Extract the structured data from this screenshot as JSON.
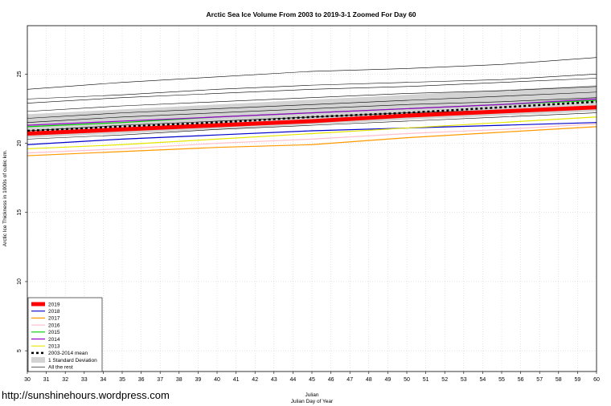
{
  "chart_data": {
    "type": "line",
    "title": "Arctic Sea Ice Volume From 2003 to 2019-3-1 Zoomed For Day 60",
    "xlabel": "Julian",
    "xlabel2": "Julian Day of Year",
    "ylabel": "Arctic Ice Thickness in 1000s of cubic km.",
    "xlim": [
      30,
      60
    ],
    "ylim": [
      3.5,
      28.5
    ],
    "x_ticks": [
      30,
      31,
      32,
      33,
      34,
      35,
      36,
      37,
      38,
      39,
      40,
      41,
      42,
      43,
      44,
      45,
      46,
      47,
      48,
      49,
      50,
      51,
      52,
      53,
      54,
      55,
      56,
      57,
      58,
      59,
      60
    ],
    "y_ticks": [
      5,
      10,
      15,
      20,
      25
    ],
    "grid": true,
    "legend_position": "bottom-left",
    "std_band": {
      "name": "1 Standard Deviation",
      "color": "#d3d3d3",
      "x": [
        30,
        40,
        50,
        60
      ],
      "lower": [
        20.4,
        21.0,
        21.7,
        22.3
      ],
      "upper": [
        22.1,
        22.8,
        23.5,
        24.2
      ]
    },
    "series": [
      {
        "name": "2019",
        "color": "#ff0000",
        "width": 5,
        "dash": "",
        "x": [
          30,
          35,
          40,
          45,
          50,
          55,
          60
        ],
        "values": [
          20.7,
          21.0,
          21.3,
          21.6,
          22.0,
          22.3,
          22.6
        ]
      },
      {
        "name": "2018",
        "color": "#0000cc",
        "width": 1.2,
        "dash": "",
        "x": [
          30,
          35,
          40,
          45,
          50,
          55,
          60
        ],
        "values": [
          19.9,
          20.3,
          20.6,
          20.9,
          21.1,
          21.3,
          21.5
        ]
      },
      {
        "name": "2017",
        "color": "#ff9900",
        "width": 1.2,
        "dash": "",
        "x": [
          30,
          35,
          40,
          45,
          50,
          55,
          60
        ],
        "values": [
          19.1,
          19.4,
          19.7,
          19.9,
          20.4,
          20.8,
          21.2
        ]
      },
      {
        "name": "2016",
        "color": "#ffc0cb",
        "width": 1.2,
        "dash": "",
        "x": [
          30,
          35,
          40,
          45,
          50,
          55,
          60
        ],
        "values": [
          19.3,
          19.6,
          20.0,
          20.3,
          20.7,
          21.0,
          21.4
        ]
      },
      {
        "name": "2015",
        "color": "#00cc00",
        "width": 1.2,
        "dash": "",
        "x": [
          30,
          35,
          40,
          45,
          50,
          55,
          60
        ],
        "values": [
          21.2,
          21.5,
          21.9,
          22.2,
          22.5,
          22.8,
          23.1
        ]
      },
      {
        "name": "2014",
        "color": "#9900cc",
        "width": 1.2,
        "dash": "",
        "x": [
          30,
          35,
          40,
          45,
          50,
          55,
          60
        ],
        "values": [
          21.3,
          21.6,
          21.9,
          22.2,
          22.5,
          22.8,
          23.2
        ]
      },
      {
        "name": "2013",
        "color": "#e6e600",
        "width": 1.2,
        "dash": "",
        "x": [
          30,
          35,
          40,
          45,
          50,
          55,
          60
        ],
        "values": [
          19.6,
          19.9,
          20.3,
          20.7,
          21.1,
          21.5,
          21.9
        ]
      },
      {
        "name": "2003-2014 mean",
        "color": "#000000",
        "width": 2.5,
        "dash": "3,3",
        "x": [
          30,
          35,
          40,
          45,
          50,
          55,
          60
        ],
        "values": [
          20.9,
          21.2,
          21.5,
          21.9,
          22.2,
          22.6,
          23.0
        ]
      },
      {
        "name": "All the rest",
        "color": "#000000",
        "width": 0.6,
        "dash": "",
        "x": [
          30,
          35,
          40,
          45,
          50,
          55,
          60
        ],
        "values": [
          23.9,
          24.4,
          24.8,
          25.2,
          25.4,
          25.7,
          26.2
        ]
      },
      {
        "name": "",
        "color": "#000000",
        "width": 0.6,
        "dash": "",
        "x": [
          30,
          35,
          40,
          45,
          50,
          55,
          60
        ],
        "values": [
          23.2,
          23.5,
          23.9,
          24.2,
          24.4,
          24.6,
          25.0
        ]
      },
      {
        "name": "",
        "color": "#000000",
        "width": 0.6,
        "dash": "",
        "x": [
          30,
          35,
          40,
          45,
          50,
          55,
          60
        ],
        "values": [
          22.9,
          23.3,
          23.6,
          23.9,
          24.1,
          24.4,
          24.7
        ]
      },
      {
        "name": "",
        "color": "#000000",
        "width": 0.6,
        "dash": "",
        "x": [
          30,
          35,
          40,
          45,
          50,
          55,
          60
        ],
        "values": [
          22.3,
          22.7,
          23.0,
          23.3,
          23.6,
          23.8,
          24.1
        ]
      },
      {
        "name": "",
        "color": "#000000",
        "width": 0.6,
        "dash": "",
        "x": [
          30,
          35,
          40,
          45,
          50,
          55,
          60
        ],
        "values": [
          21.8,
          22.2,
          22.5,
          22.8,
          23.1,
          23.4,
          23.7
        ]
      },
      {
        "name": "",
        "color": "#000000",
        "width": 0.6,
        "dash": "",
        "x": [
          30,
          35,
          40,
          45,
          50,
          55,
          60
        ],
        "values": [
          21.5,
          21.9,
          22.2,
          22.5,
          22.8,
          23.0,
          23.3
        ]
      },
      {
        "name": "",
        "color": "#000000",
        "width": 0.6,
        "dash": "",
        "x": [
          30,
          35,
          40,
          45,
          50,
          55,
          60
        ],
        "values": [
          20.9,
          21.3,
          21.6,
          21.9,
          22.2,
          22.4,
          22.7
        ]
      },
      {
        "name": "",
        "color": "#000000",
        "width": 0.6,
        "dash": "",
        "x": [
          30,
          35,
          40,
          45,
          50,
          55,
          60
        ],
        "values": [
          20.3,
          20.6,
          21.0,
          21.3,
          21.6,
          21.9,
          22.2
        ]
      }
    ],
    "legend": [
      {
        "label": "2019",
        "kind": "line",
        "color": "#ff0000",
        "width": 5,
        "dash": ""
      },
      {
        "label": "2018",
        "kind": "line",
        "color": "#0000cc",
        "width": 1.2,
        "dash": ""
      },
      {
        "label": "2017",
        "kind": "line",
        "color": "#ff9900",
        "width": 1.2,
        "dash": ""
      },
      {
        "label": "2016",
        "kind": "line",
        "color": "#ffc0cb",
        "width": 1.2,
        "dash": ""
      },
      {
        "label": "2015",
        "kind": "line",
        "color": "#00cc00",
        "width": 1.2,
        "dash": ""
      },
      {
        "label": "2014",
        "kind": "line",
        "color": "#9900cc",
        "width": 1.2,
        "dash": ""
      },
      {
        "label": "2013",
        "kind": "line",
        "color": "#e6e600",
        "width": 1.2,
        "dash": ""
      },
      {
        "label": "2003-2014 mean",
        "kind": "line",
        "color": "#000000",
        "width": 2.5,
        "dash": "3,3"
      },
      {
        "label": "1 Standard Deviation",
        "kind": "box",
        "color": "#d3d3d3",
        "width": 0,
        "dash": ""
      },
      {
        "label": "All the rest",
        "kind": "line",
        "color": "#000000",
        "width": 0.6,
        "dash": ""
      }
    ]
  },
  "watermark": "http://sunshinehours.wordpress.com"
}
